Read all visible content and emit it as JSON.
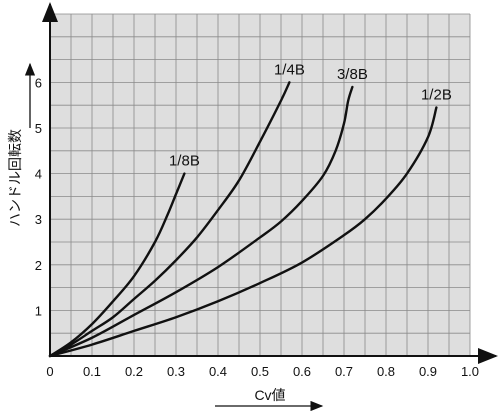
{
  "chart_data": {
    "type": "line",
    "xlabel": "Cv値",
    "ylabel": "ハンドル回転数",
    "xlim": [
      0,
      1.0
    ],
    "ylim": [
      0,
      7.5
    ],
    "grid": true,
    "x_ticks": [
      "0",
      "0.1",
      "0.2",
      "0.3",
      "0.4",
      "0.5",
      "0.6",
      "0.7",
      "0.8",
      "0.9",
      "1.0"
    ],
    "y_ticks": [
      "1",
      "2",
      "3",
      "4",
      "5",
      "6"
    ],
    "colors": {
      "grid_bg": "#dedede",
      "grid_line": "#8a8a8a",
      "curve": "#111111",
      "axis": "#111111"
    },
    "series": [
      {
        "name": "1/8B",
        "points": [
          [
            0,
            0
          ],
          [
            0.05,
            0.3
          ],
          [
            0.1,
            0.7
          ],
          [
            0.15,
            1.2
          ],
          [
            0.2,
            1.75
          ],
          [
            0.25,
            2.5
          ],
          [
            0.28,
            3.1
          ],
          [
            0.3,
            3.55
          ],
          [
            0.32,
            4.0
          ]
        ]
      },
      {
        "name": "1/4B",
        "points": [
          [
            0,
            0
          ],
          [
            0.05,
            0.25
          ],
          [
            0.1,
            0.55
          ],
          [
            0.15,
            0.85
          ],
          [
            0.2,
            1.25
          ],
          [
            0.25,
            1.65
          ],
          [
            0.3,
            2.1
          ],
          [
            0.35,
            2.6
          ],
          [
            0.4,
            3.2
          ],
          [
            0.45,
            3.85
          ],
          [
            0.5,
            4.7
          ],
          [
            0.55,
            5.6
          ],
          [
            0.57,
            6.0
          ]
        ]
      },
      {
        "name": "3/8B",
        "points": [
          [
            0,
            0
          ],
          [
            0.1,
            0.4
          ],
          [
            0.2,
            0.9
          ],
          [
            0.3,
            1.4
          ],
          [
            0.4,
            1.95
          ],
          [
            0.5,
            2.6
          ],
          [
            0.55,
            2.95
          ],
          [
            0.6,
            3.4
          ],
          [
            0.65,
            3.95
          ],
          [
            0.68,
            4.5
          ],
          [
            0.7,
            5.1
          ],
          [
            0.71,
            5.6
          ],
          [
            0.72,
            5.9
          ]
        ]
      },
      {
        "name": "1/2B",
        "points": [
          [
            0,
            0
          ],
          [
            0.1,
            0.25
          ],
          [
            0.2,
            0.55
          ],
          [
            0.3,
            0.85
          ],
          [
            0.4,
            1.2
          ],
          [
            0.5,
            1.6
          ],
          [
            0.6,
            2.05
          ],
          [
            0.7,
            2.65
          ],
          [
            0.75,
            3.0
          ],
          [
            0.8,
            3.45
          ],
          [
            0.85,
            4.0
          ],
          [
            0.9,
            4.8
          ],
          [
            0.92,
            5.45
          ]
        ]
      }
    ]
  }
}
